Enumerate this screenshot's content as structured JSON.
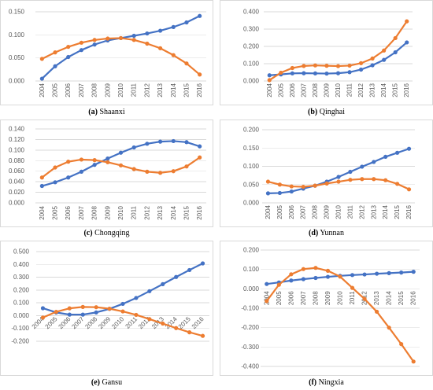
{
  "colors": {
    "series_1": "#4472C4",
    "series_2": "#ED7D31",
    "gridline": "#D9D9D9",
    "axis_text": "#595959"
  },
  "chart_data": [
    {
      "type": "line",
      "label": "(a)",
      "caption": "Shaanxi",
      "categories": [
        "2004",
        "2005",
        "2006",
        "2007",
        "2008",
        "2009",
        "2010",
        "2011",
        "2012",
        "2013",
        "2014",
        "2015",
        "2016"
      ],
      "yticks": [
        "0.000",
        "0.050",
        "0.100",
        "0.150"
      ],
      "ylim": [
        0,
        0.15
      ],
      "grid": true,
      "series": [
        {
          "color": "#4472C4",
          "values": [
            0.005,
            0.032,
            0.052,
            0.067,
            0.079,
            0.088,
            0.093,
            0.098,
            0.103,
            0.109,
            0.117,
            0.127,
            0.141
          ]
        },
        {
          "color": "#ED7D31",
          "values": [
            0.048,
            0.062,
            0.074,
            0.083,
            0.089,
            0.092,
            0.093,
            0.089,
            0.081,
            0.071,
            0.056,
            0.038,
            0.014
          ]
        }
      ]
    },
    {
      "type": "line",
      "label": "(b)",
      "caption": "Qinghai",
      "categories": [
        "2004",
        "2005",
        "2006",
        "2007",
        "2008",
        "2009",
        "2010",
        "2011",
        "2012",
        "2013",
        "2014",
        "2015",
        "2016"
      ],
      "yticks": [
        "0.000",
        "0.100",
        "0.200",
        "0.300",
        "0.400"
      ],
      "ylim": [
        0,
        0.4
      ],
      "grid": true,
      "series": [
        {
          "color": "#4472C4",
          "values": [
            0.033,
            0.038,
            0.044,
            0.045,
            0.044,
            0.043,
            0.045,
            0.051,
            0.066,
            0.091,
            0.122,
            0.166,
            0.223
          ]
        },
        {
          "color": "#ED7D31",
          "values": [
            0.005,
            0.048,
            0.075,
            0.087,
            0.09,
            0.088,
            0.086,
            0.089,
            0.103,
            0.13,
            0.176,
            0.248,
            0.345
          ]
        }
      ]
    },
    {
      "type": "line",
      "label": "(c)",
      "caption": "Chongqing",
      "categories": [
        "2004",
        "2005",
        "2006",
        "2007",
        "2008",
        "2009",
        "2010",
        "2011",
        "2012",
        "2013",
        "2014",
        "2015",
        "2016"
      ],
      "yticks": [
        "0.000",
        "0.020",
        "0.040",
        "0.060",
        "0.080",
        "0.100",
        "0.120",
        "0.140"
      ],
      "ylim": [
        0,
        0.14
      ],
      "grid": true,
      "series": [
        {
          "color": "#4472C4",
          "values": [
            0.032,
            0.039,
            0.048,
            0.059,
            0.072,
            0.084,
            0.095,
            0.105,
            0.112,
            0.116,
            0.117,
            0.115,
            0.107
          ]
        },
        {
          "color": "#ED7D31",
          "values": [
            0.048,
            0.067,
            0.078,
            0.082,
            0.081,
            0.077,
            0.071,
            0.064,
            0.059,
            0.057,
            0.06,
            0.069,
            0.086
          ]
        }
      ]
    },
    {
      "type": "line",
      "label": "(d)",
      "caption": "Yunnan",
      "categories": [
        "2004",
        "2005",
        "2006",
        "2007",
        "2008",
        "2009",
        "2010",
        "2011",
        "2012",
        "2013",
        "2014",
        "2015",
        "2016"
      ],
      "yticks": [
        "0.000",
        "0.050",
        "0.100",
        "0.150",
        "0.200"
      ],
      "ylim": [
        0,
        0.2
      ],
      "grid": true,
      "series": [
        {
          "color": "#4472C4",
          "values": [
            0.026,
            0.027,
            0.031,
            0.039,
            0.047,
            0.058,
            0.071,
            0.085,
            0.099,
            0.112,
            0.126,
            0.137,
            0.148
          ]
        },
        {
          "color": "#ED7D31",
          "values": [
            0.058,
            0.05,
            0.045,
            0.044,
            0.047,
            0.053,
            0.058,
            0.063,
            0.065,
            0.065,
            0.062,
            0.052,
            0.037
          ]
        }
      ]
    },
    {
      "type": "line",
      "label": "(e)",
      "caption": "Gansu",
      "categories": [
        "2004",
        "2005",
        "2006",
        "2007",
        "2008",
        "2009",
        "2010",
        "2011",
        "2012",
        "2013",
        "2014",
        "2015",
        "2016"
      ],
      "yticks": [
        "-0.200",
        "-0.100",
        "0.000",
        "0.100",
        "0.200",
        "0.300",
        "0.400",
        "0.500"
      ],
      "ylim": [
        -0.2,
        0.5
      ],
      "grid": true,
      "series": [
        {
          "color": "#4472C4",
          "values": [
            0.058,
            0.025,
            0.008,
            0.008,
            0.025,
            0.053,
            0.092,
            0.138,
            0.191,
            0.246,
            0.302,
            0.356,
            0.408
          ]
        },
        {
          "color": "#ED7D31",
          "values": [
            -0.015,
            0.03,
            0.057,
            0.068,
            0.066,
            0.054,
            0.033,
            0.006,
            -0.027,
            -0.062,
            -0.097,
            -0.13,
            -0.158
          ]
        }
      ]
    },
    {
      "type": "line",
      "label": "(f)",
      "caption": "Ningxia",
      "categories": [
        "2004",
        "2005",
        "2006",
        "2007",
        "2008",
        "2009",
        "2010",
        "2011",
        "2012",
        "2013",
        "2014",
        "2015",
        "2016"
      ],
      "yticks": [
        "-0.400",
        "-0.300",
        "-0.200",
        "-0.100",
        "0.000",
        "0.100",
        "0.200"
      ],
      "ylim": [
        -0.4,
        0.2
      ],
      "grid": true,
      "series": [
        {
          "color": "#4472C4",
          "values": [
            0.025,
            0.033,
            0.043,
            0.05,
            0.056,
            0.062,
            0.067,
            0.071,
            0.074,
            0.078,
            0.081,
            0.084,
            0.088
          ]
        },
        {
          "color": "#ED7D31",
          "values": [
            -0.063,
            0.021,
            0.075,
            0.102,
            0.108,
            0.093,
            0.063,
            0.005,
            -0.052,
            -0.118,
            -0.2,
            -0.285,
            -0.375
          ]
        }
      ]
    }
  ]
}
